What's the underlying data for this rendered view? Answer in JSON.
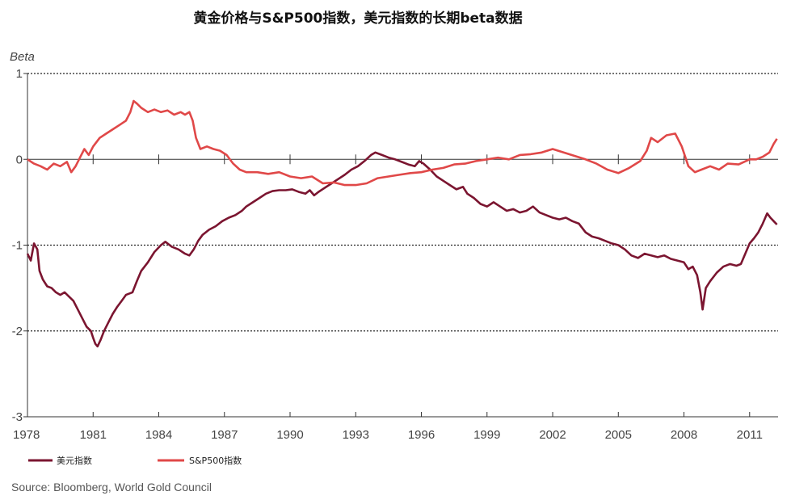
{
  "chart_data": {
    "type": "line",
    "title": "黄金价格与S&P500指数，美元指数的长期beta数据",
    "ylabel": "Beta",
    "xlabel": "",
    "xlim": [
      1978,
      2012.3
    ],
    "ylim": [
      -3,
      1
    ],
    "x_ticks": [
      "1978",
      "1981",
      "1984",
      "1987",
      "1990",
      "1993",
      "1996",
      "1999",
      "2002",
      "2005",
      "2008",
      "2011"
    ],
    "y_ticks": [
      "1",
      "0",
      "-1",
      "-2",
      "-3"
    ],
    "grid": "horizontal dotted",
    "legend_position": "bottom-left",
    "source": "Source: Bloomberg, World Gold Council",
    "series": [
      {
        "name": "美元指数",
        "color": "#7b1530",
        "points": [
          [
            1978.0,
            -1.1
          ],
          [
            1978.15,
            -1.18
          ],
          [
            1978.3,
            -0.98
          ],
          [
            1978.45,
            -1.05
          ],
          [
            1978.55,
            -1.3
          ],
          [
            1978.7,
            -1.4
          ],
          [
            1978.9,
            -1.48
          ],
          [
            1979.1,
            -1.5
          ],
          [
            1979.3,
            -1.55
          ],
          [
            1979.5,
            -1.58
          ],
          [
            1979.7,
            -1.55
          ],
          [
            1979.9,
            -1.6
          ],
          [
            1980.1,
            -1.65
          ],
          [
            1980.3,
            -1.75
          ],
          [
            1980.5,
            -1.85
          ],
          [
            1980.7,
            -1.95
          ],
          [
            1980.9,
            -2.0
          ],
          [
            1981.0,
            -2.08
          ],
          [
            1981.1,
            -2.15
          ],
          [
            1981.2,
            -2.18
          ],
          [
            1981.35,
            -2.1
          ],
          [
            1981.5,
            -2.0
          ],
          [
            1981.7,
            -1.9
          ],
          [
            1981.9,
            -1.8
          ],
          [
            1982.1,
            -1.72
          ],
          [
            1982.3,
            -1.65
          ],
          [
            1982.5,
            -1.58
          ],
          [
            1982.8,
            -1.55
          ],
          [
            1983.0,
            -1.42
          ],
          [
            1983.2,
            -1.3
          ],
          [
            1983.5,
            -1.2
          ],
          [
            1983.8,
            -1.08
          ],
          [
            1984.1,
            -1.0
          ],
          [
            1984.3,
            -0.96
          ],
          [
            1984.6,
            -1.02
          ],
          [
            1984.9,
            -1.05
          ],
          [
            1985.2,
            -1.1
          ],
          [
            1985.4,
            -1.12
          ],
          [
            1985.6,
            -1.05
          ],
          [
            1985.8,
            -0.95
          ],
          [
            1986.0,
            -0.88
          ],
          [
            1986.3,
            -0.82
          ],
          [
            1986.6,
            -0.78
          ],
          [
            1986.9,
            -0.72
          ],
          [
            1987.2,
            -0.68
          ],
          [
            1987.5,
            -0.65
          ],
          [
            1987.8,
            -0.6
          ],
          [
            1988.0,
            -0.55
          ],
          [
            1988.3,
            -0.5
          ],
          [
            1988.6,
            -0.45
          ],
          [
            1988.9,
            -0.4
          ],
          [
            1989.2,
            -0.37
          ],
          [
            1989.5,
            -0.36
          ],
          [
            1989.8,
            -0.36
          ],
          [
            1990.1,
            -0.35
          ],
          [
            1990.4,
            -0.38
          ],
          [
            1990.7,
            -0.4
          ],
          [
            1990.9,
            -0.36
          ],
          [
            1991.1,
            -0.42
          ],
          [
            1991.3,
            -0.38
          ],
          [
            1991.6,
            -0.33
          ],
          [
            1991.9,
            -0.28
          ],
          [
            1992.2,
            -0.23
          ],
          [
            1992.5,
            -0.18
          ],
          [
            1992.8,
            -0.12
          ],
          [
            1993.1,
            -0.08
          ],
          [
            1993.4,
            -0.02
          ],
          [
            1993.7,
            0.05
          ],
          [
            1993.9,
            0.08
          ],
          [
            1994.2,
            0.05
          ],
          [
            1994.5,
            0.02
          ],
          [
            1994.8,
            0.0
          ],
          [
            1995.1,
            -0.03
          ],
          [
            1995.4,
            -0.06
          ],
          [
            1995.7,
            -0.08
          ],
          [
            1995.9,
            -0.02
          ],
          [
            1996.1,
            -0.05
          ],
          [
            1996.4,
            -0.12
          ],
          [
            1996.7,
            -0.2
          ],
          [
            1997.0,
            -0.25
          ],
          [
            1997.3,
            -0.3
          ],
          [
            1997.6,
            -0.35
          ],
          [
            1997.9,
            -0.32
          ],
          [
            1998.1,
            -0.4
          ],
          [
            1998.4,
            -0.45
          ],
          [
            1998.7,
            -0.52
          ],
          [
            1999.0,
            -0.55
          ],
          [
            1999.3,
            -0.5
          ],
          [
            1999.6,
            -0.55
          ],
          [
            1999.9,
            -0.6
          ],
          [
            2000.2,
            -0.58
          ],
          [
            2000.5,
            -0.62
          ],
          [
            2000.8,
            -0.6
          ],
          [
            2001.1,
            -0.55
          ],
          [
            2001.4,
            -0.62
          ],
          [
            2001.7,
            -0.65
          ],
          [
            2002.0,
            -0.68
          ],
          [
            2002.3,
            -0.7
          ],
          [
            2002.6,
            -0.68
          ],
          [
            2002.9,
            -0.72
          ],
          [
            2003.2,
            -0.75
          ],
          [
            2003.5,
            -0.85
          ],
          [
            2003.8,
            -0.9
          ],
          [
            2004.1,
            -0.92
          ],
          [
            2004.4,
            -0.95
          ],
          [
            2004.7,
            -0.98
          ],
          [
            2005.0,
            -1.0
          ],
          [
            2005.3,
            -1.05
          ],
          [
            2005.6,
            -1.12
          ],
          [
            2005.9,
            -1.15
          ],
          [
            2006.2,
            -1.1
          ],
          [
            2006.5,
            -1.12
          ],
          [
            2006.8,
            -1.14
          ],
          [
            2007.1,
            -1.12
          ],
          [
            2007.4,
            -1.16
          ],
          [
            2007.7,
            -1.18
          ],
          [
            2008.0,
            -1.2
          ],
          [
            2008.2,
            -1.28
          ],
          [
            2008.4,
            -1.25
          ],
          [
            2008.6,
            -1.35
          ],
          [
            2008.75,
            -1.55
          ],
          [
            2008.85,
            -1.75
          ],
          [
            2009.0,
            -1.5
          ],
          [
            2009.2,
            -1.42
          ],
          [
            2009.5,
            -1.32
          ],
          [
            2009.8,
            -1.25
          ],
          [
            2010.1,
            -1.22
          ],
          [
            2010.4,
            -1.24
          ],
          [
            2010.6,
            -1.22
          ],
          [
            2010.8,
            -1.1
          ],
          [
            2011.0,
            -0.98
          ],
          [
            2011.2,
            -0.92
          ],
          [
            2011.4,
            -0.85
          ],
          [
            2011.6,
            -0.75
          ],
          [
            2011.8,
            -0.63
          ],
          [
            2011.95,
            -0.68
          ],
          [
            2012.1,
            -0.72
          ],
          [
            2012.25,
            -0.76
          ]
        ]
      },
      {
        "name": "S&P500指数",
        "color": "#e04848",
        "points": [
          [
            1978.0,
            0.0
          ],
          [
            1978.3,
            -0.05
          ],
          [
            1978.6,
            -0.08
          ],
          [
            1978.9,
            -0.12
          ],
          [
            1979.2,
            -0.05
          ],
          [
            1979.5,
            -0.08
          ],
          [
            1979.8,
            -0.03
          ],
          [
            1980.0,
            -0.15
          ],
          [
            1980.2,
            -0.08
          ],
          [
            1980.4,
            0.02
          ],
          [
            1980.6,
            0.12
          ],
          [
            1980.8,
            0.05
          ],
          [
            1981.0,
            0.15
          ],
          [
            1981.3,
            0.25
          ],
          [
            1981.6,
            0.3
          ],
          [
            1981.9,
            0.35
          ],
          [
            1982.2,
            0.4
          ],
          [
            1982.5,
            0.45
          ],
          [
            1982.7,
            0.55
          ],
          [
            1982.85,
            0.68
          ],
          [
            1983.0,
            0.65
          ],
          [
            1983.2,
            0.6
          ],
          [
            1983.5,
            0.55
          ],
          [
            1983.8,
            0.58
          ],
          [
            1984.1,
            0.55
          ],
          [
            1984.4,
            0.57
          ],
          [
            1984.7,
            0.52
          ],
          [
            1985.0,
            0.55
          ],
          [
            1985.2,
            0.52
          ],
          [
            1985.4,
            0.55
          ],
          [
            1985.55,
            0.45
          ],
          [
            1985.7,
            0.25
          ],
          [
            1985.9,
            0.12
          ],
          [
            1986.2,
            0.15
          ],
          [
            1986.5,
            0.12
          ],
          [
            1986.8,
            0.1
          ],
          [
            1987.1,
            0.05
          ],
          [
            1987.4,
            -0.05
          ],
          [
            1987.7,
            -0.12
          ],
          [
            1988.0,
            -0.15
          ],
          [
            1988.5,
            -0.15
          ],
          [
            1989.0,
            -0.17
          ],
          [
            1989.5,
            -0.15
          ],
          [
            1990.0,
            -0.2
          ],
          [
            1990.5,
            -0.22
          ],
          [
            1991.0,
            -0.2
          ],
          [
            1991.5,
            -0.28
          ],
          [
            1992.0,
            -0.27
          ],
          [
            1992.5,
            -0.3
          ],
          [
            1993.0,
            -0.3
          ],
          [
            1993.5,
            -0.28
          ],
          [
            1994.0,
            -0.22
          ],
          [
            1994.5,
            -0.2
          ],
          [
            1995.0,
            -0.18
          ],
          [
            1995.5,
            -0.16
          ],
          [
            1996.0,
            -0.15
          ],
          [
            1996.5,
            -0.12
          ],
          [
            1997.0,
            -0.1
          ],
          [
            1997.5,
            -0.06
          ],
          [
            1998.0,
            -0.05
          ],
          [
            1998.5,
            -0.02
          ],
          [
            1999.0,
            0.0
          ],
          [
            1999.5,
            0.02
          ],
          [
            2000.0,
            0.0
          ],
          [
            2000.5,
            0.05
          ],
          [
            2001.0,
            0.06
          ],
          [
            2001.5,
            0.08
          ],
          [
            2002.0,
            0.12
          ],
          [
            2002.5,
            0.08
          ],
          [
            2003.0,
            0.04
          ],
          [
            2003.5,
            0.0
          ],
          [
            2004.0,
            -0.05
          ],
          [
            2004.5,
            -0.12
          ],
          [
            2005.0,
            -0.16
          ],
          [
            2005.5,
            -0.1
          ],
          [
            2006.0,
            -0.02
          ],
          [
            2006.3,
            0.1
          ],
          [
            2006.5,
            0.25
          ],
          [
            2006.8,
            0.2
          ],
          [
            2007.2,
            0.28
          ],
          [
            2007.6,
            0.3
          ],
          [
            2007.9,
            0.15
          ],
          [
            2008.2,
            -0.08
          ],
          [
            2008.5,
            -0.15
          ],
          [
            2008.8,
            -0.12
          ],
          [
            2009.2,
            -0.08
          ],
          [
            2009.6,
            -0.12
          ],
          [
            2010.0,
            -0.05
          ],
          [
            2010.5,
            -0.06
          ],
          [
            2011.0,
            0.0
          ],
          [
            2011.3,
            0.0
          ],
          [
            2011.6,
            0.03
          ],
          [
            2011.9,
            0.08
          ],
          [
            2012.1,
            0.18
          ],
          [
            2012.25,
            0.24
          ]
        ]
      }
    ]
  }
}
